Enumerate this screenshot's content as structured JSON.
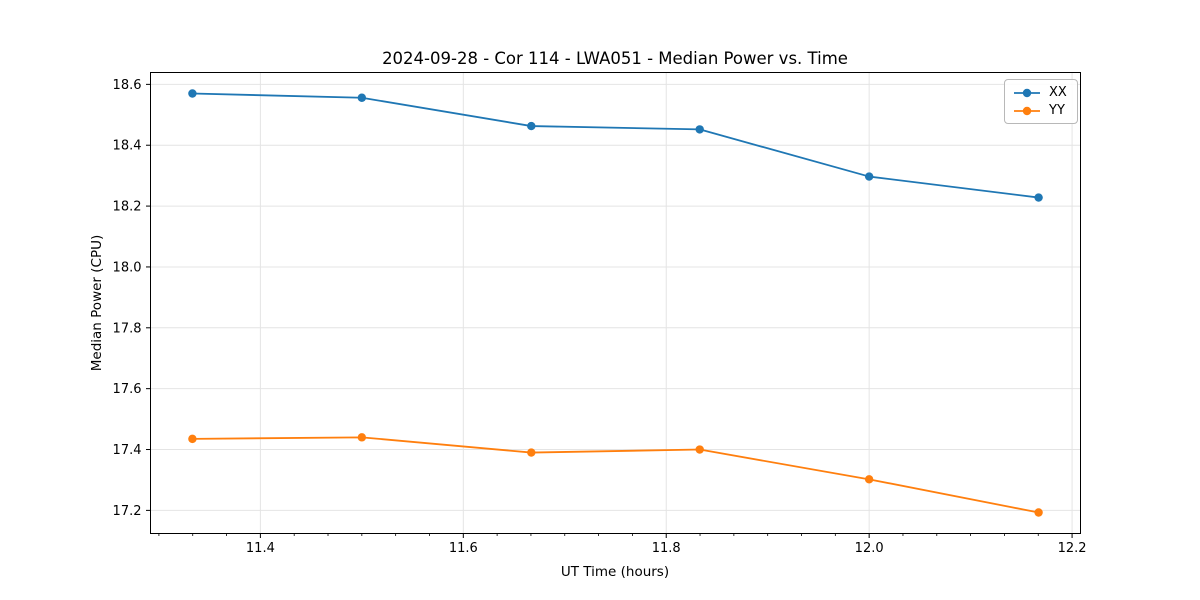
{
  "chart_data": {
    "type": "line",
    "title": "2024-09-28 - Cor 114 - LWA051 - Median Power vs. Time",
    "xlabel": "UT Time (hours)",
    "ylabel": "Median Power (CPU)",
    "xlim": [
      11.2917,
      12.2083
    ],
    "ylim": [
      17.124,
      18.639
    ],
    "xticks": [
      11.4,
      11.6,
      11.8,
      12.0,
      12.2
    ],
    "yticks": [
      17.2,
      17.4,
      17.6,
      17.8,
      18.0,
      18.2,
      18.4,
      18.6
    ],
    "x_minor_step": 0.0333333,
    "grid": true,
    "legend_position": "top-right",
    "x": [
      11.333,
      11.5,
      11.667,
      11.833,
      12.0,
      12.167
    ],
    "series": [
      {
        "name": "XX",
        "color": "#1f77b4",
        "values": [
          18.57,
          18.556,
          18.463,
          18.452,
          18.297,
          18.228
        ]
      },
      {
        "name": "YY",
        "color": "#ff7f0e",
        "values": [
          17.435,
          17.44,
          17.39,
          17.4,
          17.302,
          17.193
        ]
      }
    ]
  },
  "colors": {
    "background": "#ffffff",
    "grid": "#e4e4e4",
    "spine": "#000000",
    "tick": "#000000",
    "text": "#000000",
    "legend_border": "#b8b8b8"
  }
}
